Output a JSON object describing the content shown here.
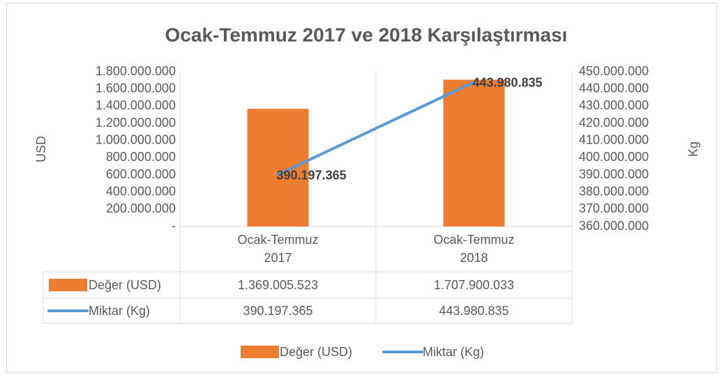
{
  "chart_data": {
    "type": "bar",
    "title": "Ocak-Temmuz 2017 ve 2018 Karşılaştırması",
    "ylabel": "USD",
    "y2label": "Kg",
    "categories": [
      "Ocak-Temmuz 2017",
      "Ocak-Temmuz 2018"
    ],
    "series": [
      {
        "name": "Değer (USD)",
        "type": "bar",
        "color": "#ed7d31",
        "values": [
          1369005523,
          1707900033
        ],
        "value_labels": [
          "1.369.005.523",
          "1.707.900.033"
        ]
      },
      {
        "name": "Miktar (Kg)",
        "type": "line",
        "axis": "y2",
        "color": "#5b9bd5",
        "values": [
          390197365,
          443980835
        ],
        "value_labels": [
          "390.197.365",
          "443.980.835"
        ]
      }
    ],
    "ylim": [
      0,
      1800000000
    ],
    "yticks": [
      {
        "value": 0,
        "label": "-"
      },
      {
        "value": 200000000,
        "label": "200.000.000"
      },
      {
        "value": 400000000,
        "label": "400.000.000"
      },
      {
        "value": 600000000,
        "label": "600.000.000"
      },
      {
        "value": 800000000,
        "label": "800.000.000"
      },
      {
        "value": 1000000000,
        "label": "1.000.000.000"
      },
      {
        "value": 1200000000,
        "label": "1.200.000.000"
      },
      {
        "value": 1400000000,
        "label": "1.400.000.000"
      },
      {
        "value": 1600000000,
        "label": "1.600.000.000"
      },
      {
        "value": 1800000000,
        "label": "1.800.000.000"
      }
    ],
    "y2lim": [
      360000000,
      450000000
    ],
    "y2ticks": [
      {
        "value": 360000000,
        "label": "360.000.000"
      },
      {
        "value": 370000000,
        "label": "370.000.000"
      },
      {
        "value": 380000000,
        "label": "380.000.000"
      },
      {
        "value": 390000000,
        "label": "390.000.000"
      },
      {
        "value": 400000000,
        "label": "400.000.000"
      },
      {
        "value": 410000000,
        "label": "410.000.000"
      },
      {
        "value": 420000000,
        "label": "420.000.000"
      },
      {
        "value": 430000000,
        "label": "430.000.000"
      },
      {
        "value": 440000000,
        "label": "440.000.000"
      },
      {
        "value": 450000000,
        "label": "450.000.000"
      }
    ],
    "grid": false,
    "legend": "bottom",
    "data_table": true
  }
}
